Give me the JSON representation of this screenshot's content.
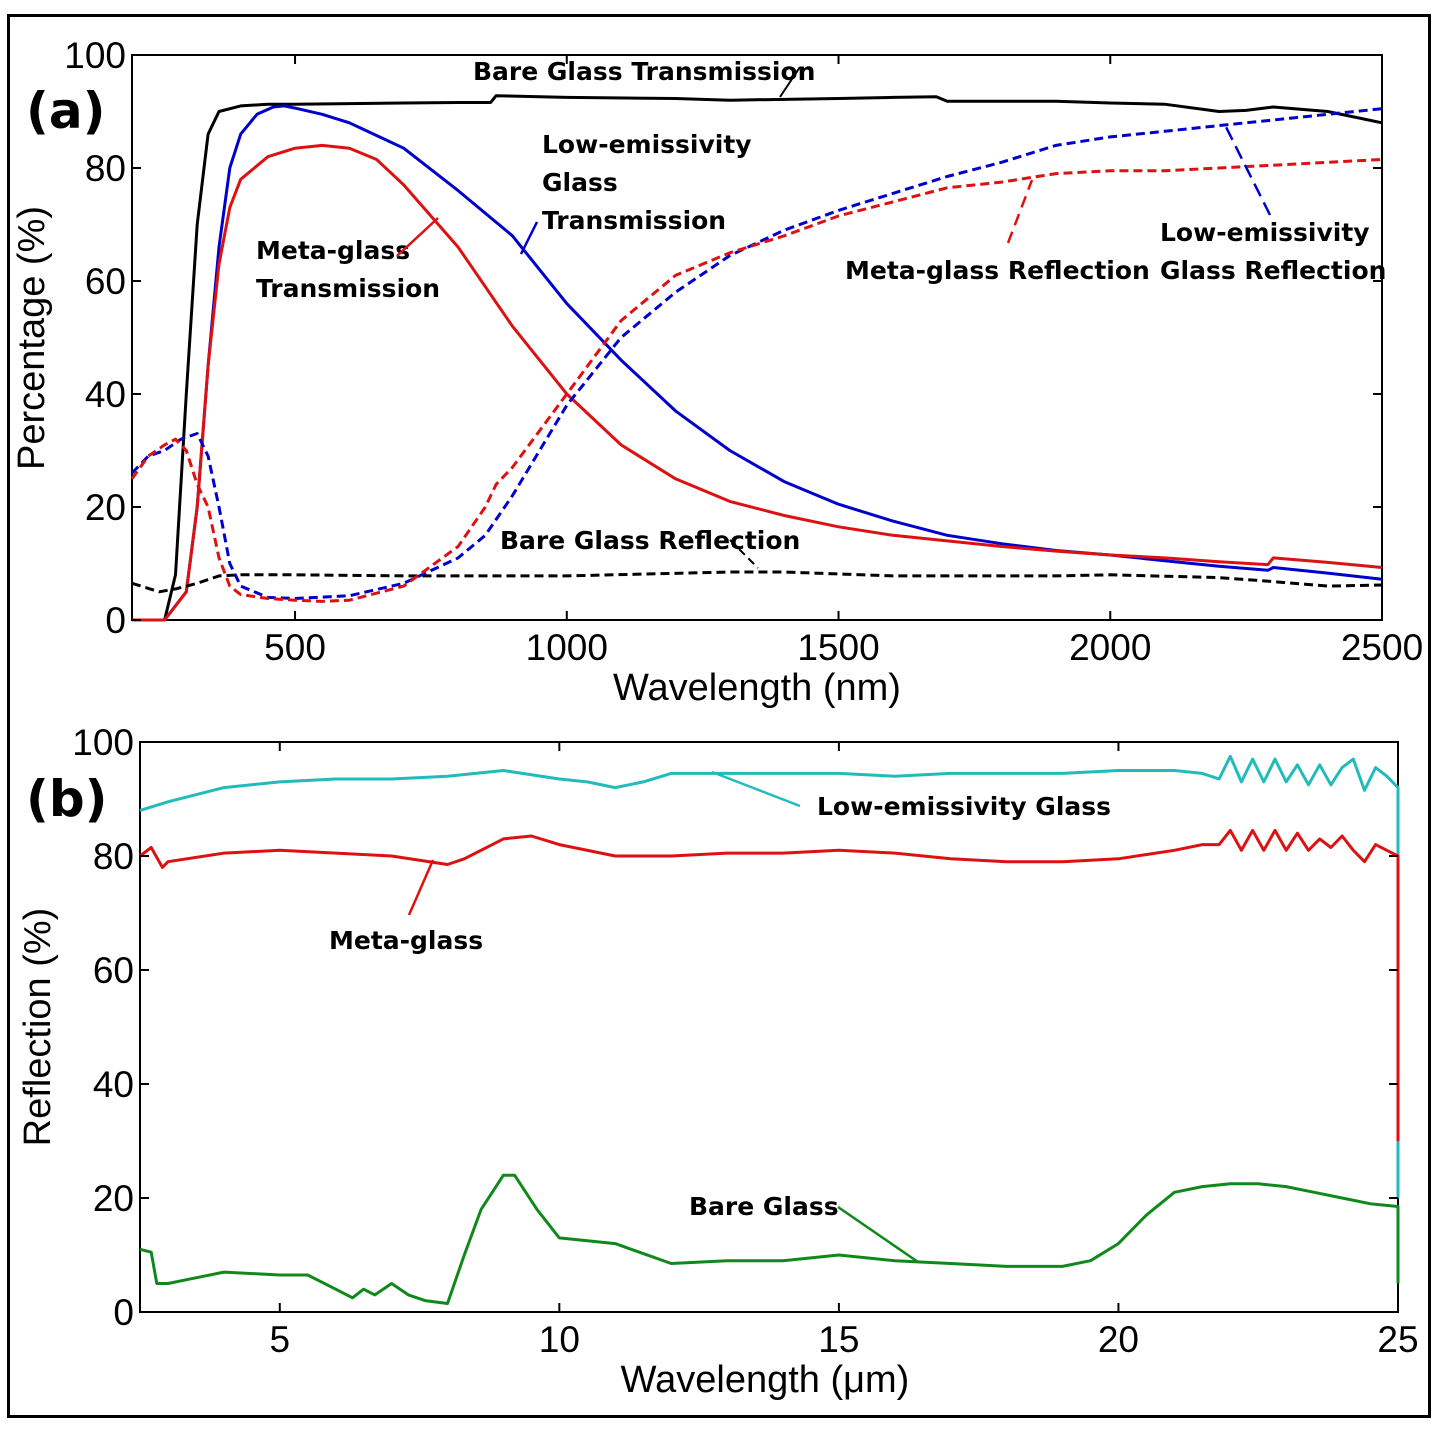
{
  "chart_data": [
    {
      "type": "line",
      "panel": "(a)",
      "xlabel": "Wavelength (nm)",
      "ylabel": "Percentage (%)",
      "xlim": [
        200,
        2500
      ],
      "ylim": [
        0,
        100
      ],
      "xticks": [
        500,
        1000,
        1500,
        2000,
        2500
      ],
      "yticks": [
        0,
        20,
        40,
        60,
        80,
        100
      ],
      "series": [
        {
          "name": "Bare Glass Transmission",
          "color": "#000000",
          "style": "solid",
          "x": [
            200,
            260,
            280,
            300,
            320,
            340,
            360,
            400,
            450,
            500,
            600,
            700,
            800,
            860,
            870,
            1000,
            1200,
            1300,
            1500,
            1600,
            1680,
            1700,
            1900,
            2000,
            2100,
            2200,
            2250,
            2300,
            2400,
            2450,
            2500
          ],
          "y": [
            0,
            0,
            8,
            40,
            70,
            86,
            90,
            91,
            91.3,
            91.3,
            91.4,
            91.5,
            91.6,
            91.6,
            92.8,
            92.5,
            92.3,
            92,
            92.3,
            92.5,
            92.6,
            91.8,
            91.8,
            91.5,
            91.3,
            90,
            90.2,
            90.8,
            90,
            89,
            88
          ]
        },
        {
          "name": "Low-emissivity Glass Transmission",
          "color": "#0000cc",
          "style": "solid",
          "x": [
            200,
            260,
            300,
            320,
            340,
            360,
            380,
            400,
            430,
            460,
            480,
            500,
            550,
            600,
            700,
            800,
            900,
            1000,
            1100,
            1200,
            1300,
            1400,
            1500,
            1600,
            1700,
            1800,
            1900,
            2000,
            2100,
            2200,
            2290,
            2300,
            2400,
            2500
          ],
          "y": [
            0,
            0,
            5,
            20,
            45,
            66,
            80,
            86,
            89.5,
            90.8,
            91,
            90.6,
            89.5,
            88,
            83.5,
            76,
            68,
            56,
            46,
            37,
            30,
            24.5,
            20.5,
            17.5,
            15,
            13.5,
            12.3,
            11.5,
            10.5,
            9.5,
            8.8,
            9.3,
            8.3,
            7.2
          ]
        },
        {
          "name": "Meta-glass Transmission",
          "color": "#dd1111",
          "style": "solid",
          "x": [
            200,
            260,
            300,
            320,
            340,
            360,
            380,
            400,
            450,
            500,
            550,
            600,
            650,
            700,
            800,
            900,
            1000,
            1100,
            1200,
            1300,
            1400,
            1500,
            1600,
            1700,
            1800,
            1900,
            2000,
            2100,
            2200,
            2290,
            2300,
            2400,
            2500
          ],
          "y": [
            0,
            0,
            5,
            20,
            45,
            63,
            73,
            78,
            82,
            83.5,
            84,
            83.5,
            81.5,
            77,
            66,
            52,
            40,
            31,
            25,
            21,
            18.5,
            16.5,
            15,
            14,
            13,
            12.2,
            11.5,
            11,
            10.3,
            9.8,
            11,
            10.2,
            9.3
          ]
        },
        {
          "name": "Bare Glass Reflection",
          "color": "#000000",
          "style": "dashed",
          "x": [
            200,
            250,
            280,
            320,
            360,
            400,
            500,
            700,
            1000,
            1300,
            1400,
            1600,
            1900,
            2000,
            2200,
            2300,
            2400,
            2500
          ],
          "y": [
            6.5,
            5,
            5.5,
            6.5,
            7.8,
            8,
            8,
            7.8,
            7.8,
            8.5,
            8.5,
            7.8,
            7.8,
            8,
            7.5,
            6.8,
            6,
            6.2
          ]
        },
        {
          "name": "Low-emissivity Glass Reflection",
          "color": "#0000cc",
          "style": "dashed",
          "x": [
            200,
            230,
            260,
            290,
            320,
            340,
            360,
            380,
            400,
            450,
            500,
            600,
            700,
            800,
            850,
            900,
            1000,
            1100,
            1200,
            1300,
            1400,
            1500,
            1600,
            1700,
            1800,
            1900,
            2000,
            2100,
            2200,
            2300,
            2400,
            2500
          ],
          "y": [
            26,
            29,
            30,
            32,
            33,
            29,
            20,
            10,
            6,
            4,
            3.8,
            4.3,
            6.5,
            11,
            15,
            22,
            38,
            50,
            58,
            64.5,
            69,
            72.5,
            75.5,
            78.5,
            81,
            84,
            85.5,
            86.5,
            87.5,
            88.5,
            89.5,
            90.5
          ]
        },
        {
          "name": "Meta-glass Reflection",
          "color": "#dd1111",
          "style": "dashed",
          "x": [
            200,
            230,
            260,
            280,
            300,
            320,
            340,
            360,
            380,
            400,
            450,
            500,
            550,
            600,
            700,
            800,
            850,
            870,
            900,
            1000,
            1100,
            1200,
            1300,
            1400,
            1500,
            1600,
            1700,
            1800,
            1900,
            2000,
            2100,
            2200,
            2300,
            2400,
            2500
          ],
          "y": [
            25,
            29,
            31,
            32,
            30,
            24,
            20,
            11,
            6,
            4.5,
            3.8,
            3.5,
            3.3,
            3.5,
            6,
            13,
            20,
            24,
            27,
            40,
            53,
            61,
            65,
            68,
            71.5,
            74,
            76.5,
            77.5,
            79,
            79.5,
            79.5,
            80,
            80.5,
            81,
            81.5
          ]
        }
      ],
      "annotations": [
        "Bare Glass Transmission",
        "Low-emissivity Glass Transmission",
        "Meta-glass Transmission",
        "Meta-glass Reflection",
        "Low-emissivity Glass Reflection",
        "Bare Glass Reflection"
      ]
    },
    {
      "type": "line",
      "panel": "(b)",
      "xlabel": "Wavelength (μm)",
      "ylabel": "Reflection (%)",
      "xlim": [
        2.5,
        25
      ],
      "ylim": [
        0,
        100
      ],
      "xticks": [
        5,
        10,
        15,
        20,
        25
      ],
      "yticks": [
        0,
        20,
        40,
        60,
        80,
        100
      ],
      "series": [
        {
          "name": "Low-emissivity Glass",
          "color": "#22bbbb",
          "style": "solid",
          "x": [
            2.5,
            3,
            4,
            5,
            6,
            7,
            8,
            9,
            10,
            10.5,
            11,
            11.5,
            12,
            13,
            14,
            15,
            16,
            17,
            18,
            19,
            20,
            21,
            21.5,
            21.8,
            22,
            22.2,
            22.4,
            22.6,
            22.8,
            23,
            23.2,
            23.4,
            23.6,
            23.8,
            24,
            24.2,
            24.4,
            24.6,
            24.8,
            25,
            25,
            25
          ],
          "y": [
            88,
            89.5,
            92,
            93,
            93.5,
            93.5,
            94,
            95,
            93.5,
            93,
            92,
            93,
            94.5,
            94.5,
            94.5,
            94.5,
            94,
            94.5,
            94.5,
            94.5,
            95,
            95,
            94.5,
            93.5,
            97.5,
            93,
            97,
            93,
            97,
            93,
            96,
            92.5,
            96,
            92.5,
            95.5,
            97,
            91.5,
            95.5,
            94,
            92,
            70,
            20
          ]
        },
        {
          "name": "Meta-glass",
          "color": "#dd1111",
          "style": "solid",
          "x": [
            2.5,
            2.7,
            2.9,
            3,
            4,
            5,
            6,
            7,
            8,
            8.3,
            9,
            9.5,
            10,
            11,
            12,
            13,
            14,
            15,
            16,
            17,
            18,
            19,
            20,
            21,
            21.5,
            21.8,
            22,
            22.2,
            22.4,
            22.6,
            22.8,
            23,
            23.2,
            23.4,
            23.6,
            23.8,
            24,
            24.2,
            24.4,
            24.6,
            24.8,
            25,
            25
          ],
          "y": [
            80,
            81.5,
            78,
            79,
            80.5,
            81,
            80.5,
            80,
            78.5,
            79.5,
            83,
            83.5,
            82,
            80,
            80,
            80.5,
            80.5,
            81,
            80.5,
            79.5,
            79,
            79,
            79.5,
            81,
            82,
            82,
            84.5,
            81,
            84.5,
            81,
            84.5,
            81,
            84,
            81,
            83,
            81.5,
            83.5,
            81,
            79,
            82,
            81,
            80,
            30
          ]
        },
        {
          "name": "Bare Glass",
          "color": "#11881b",
          "style": "solid",
          "x": [
            2.5,
            2.7,
            2.8,
            3,
            3.5,
            4,
            5,
            5.5,
            6,
            6.3,
            6.5,
            6.7,
            7,
            7.3,
            7.6,
            8,
            8.3,
            8.6,
            9,
            9.2,
            9.6,
            10,
            11,
            12,
            13,
            14,
            15,
            16,
            17,
            18,
            19,
            19.5,
            20,
            20.5,
            21,
            21.5,
            22,
            22.5,
            23,
            23.5,
            24,
            24.5,
            25,
            25
          ],
          "y": [
            11,
            10.5,
            5,
            5,
            6,
            7,
            6.5,
            6.5,
            4,
            2.5,
            4,
            3,
            5,
            3,
            2,
            1.5,
            10,
            18,
            24,
            24,
            18,
            13,
            12,
            8.5,
            9,
            9,
            10,
            9,
            8.5,
            8,
            8,
            9,
            12,
            17,
            21,
            22,
            22.5,
            22.5,
            22,
            21,
            20,
            19,
            18.5,
            5
          ]
        }
      ],
      "annotations": [
        "Low-emissivity Glass",
        "Meta-glass",
        "Bare Glass"
      ]
    }
  ]
}
